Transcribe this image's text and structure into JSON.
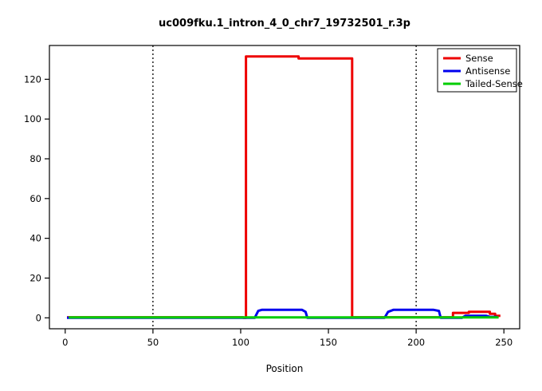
{
  "chart_data": {
    "type": "line",
    "title": "uc009fku.1_intron_4_0_chr7_19732501_r.3p",
    "xlabel": "Position",
    "ylabel": "",
    "xlim": [
      -9,
      259
    ],
    "ylim": [
      -5.5,
      137
    ],
    "x_ticks": [
      0,
      50,
      100,
      150,
      200,
      250
    ],
    "y_ticks": [
      0,
      20,
      40,
      60,
      80,
      100,
      120
    ],
    "grid": false,
    "vlines": {
      "positions": [
        50,
        200
      ],
      "style": "dotted",
      "color": "#000000"
    },
    "axis_color": "#000000",
    "plot_background": "#ffffff",
    "legend": {
      "position": "top-right",
      "border": true
    },
    "series": [
      {
        "name": "Sense",
        "color": "#ee0000",
        "width": 3,
        "points": [
          [
            1,
            0.3
          ],
          [
            101.5,
            0.3
          ],
          [
            101.5,
            0
          ],
          [
            103,
            0
          ],
          [
            103,
            131.5
          ],
          [
            133,
            131.5
          ],
          [
            133,
            130.5
          ],
          [
            163.5,
            130.5
          ],
          [
            163.5,
            0.3
          ],
          [
            221,
            0.3
          ],
          [
            221,
            2.5
          ],
          [
            230,
            2.5
          ],
          [
            230,
            3
          ],
          [
            242,
            3
          ],
          [
            242,
            2
          ],
          [
            245,
            2
          ],
          [
            245,
            1
          ],
          [
            248,
            1
          ]
        ]
      },
      {
        "name": "Antisense",
        "color": "#0000ee",
        "width": 3,
        "points": [
          [
            1,
            0
          ],
          [
            108,
            0
          ],
          [
            110,
            3.5
          ],
          [
            112,
            4
          ],
          [
            135,
            4
          ],
          [
            137,
            3
          ],
          [
            138,
            0
          ],
          [
            182,
            0
          ],
          [
            184,
            3
          ],
          [
            187,
            4
          ],
          [
            210,
            4
          ],
          [
            213,
            3.5
          ],
          [
            214,
            0
          ],
          [
            226,
            0
          ],
          [
            228,
            1
          ],
          [
            240,
            1
          ],
          [
            242,
            0.5
          ],
          [
            246,
            0.5
          ]
        ]
      },
      {
        "name": "Tailed-Sense",
        "color": "#00cd00",
        "width": 3,
        "points": [
          [
            2,
            0.2
          ],
          [
            247,
            0.2
          ]
        ]
      }
    ]
  }
}
